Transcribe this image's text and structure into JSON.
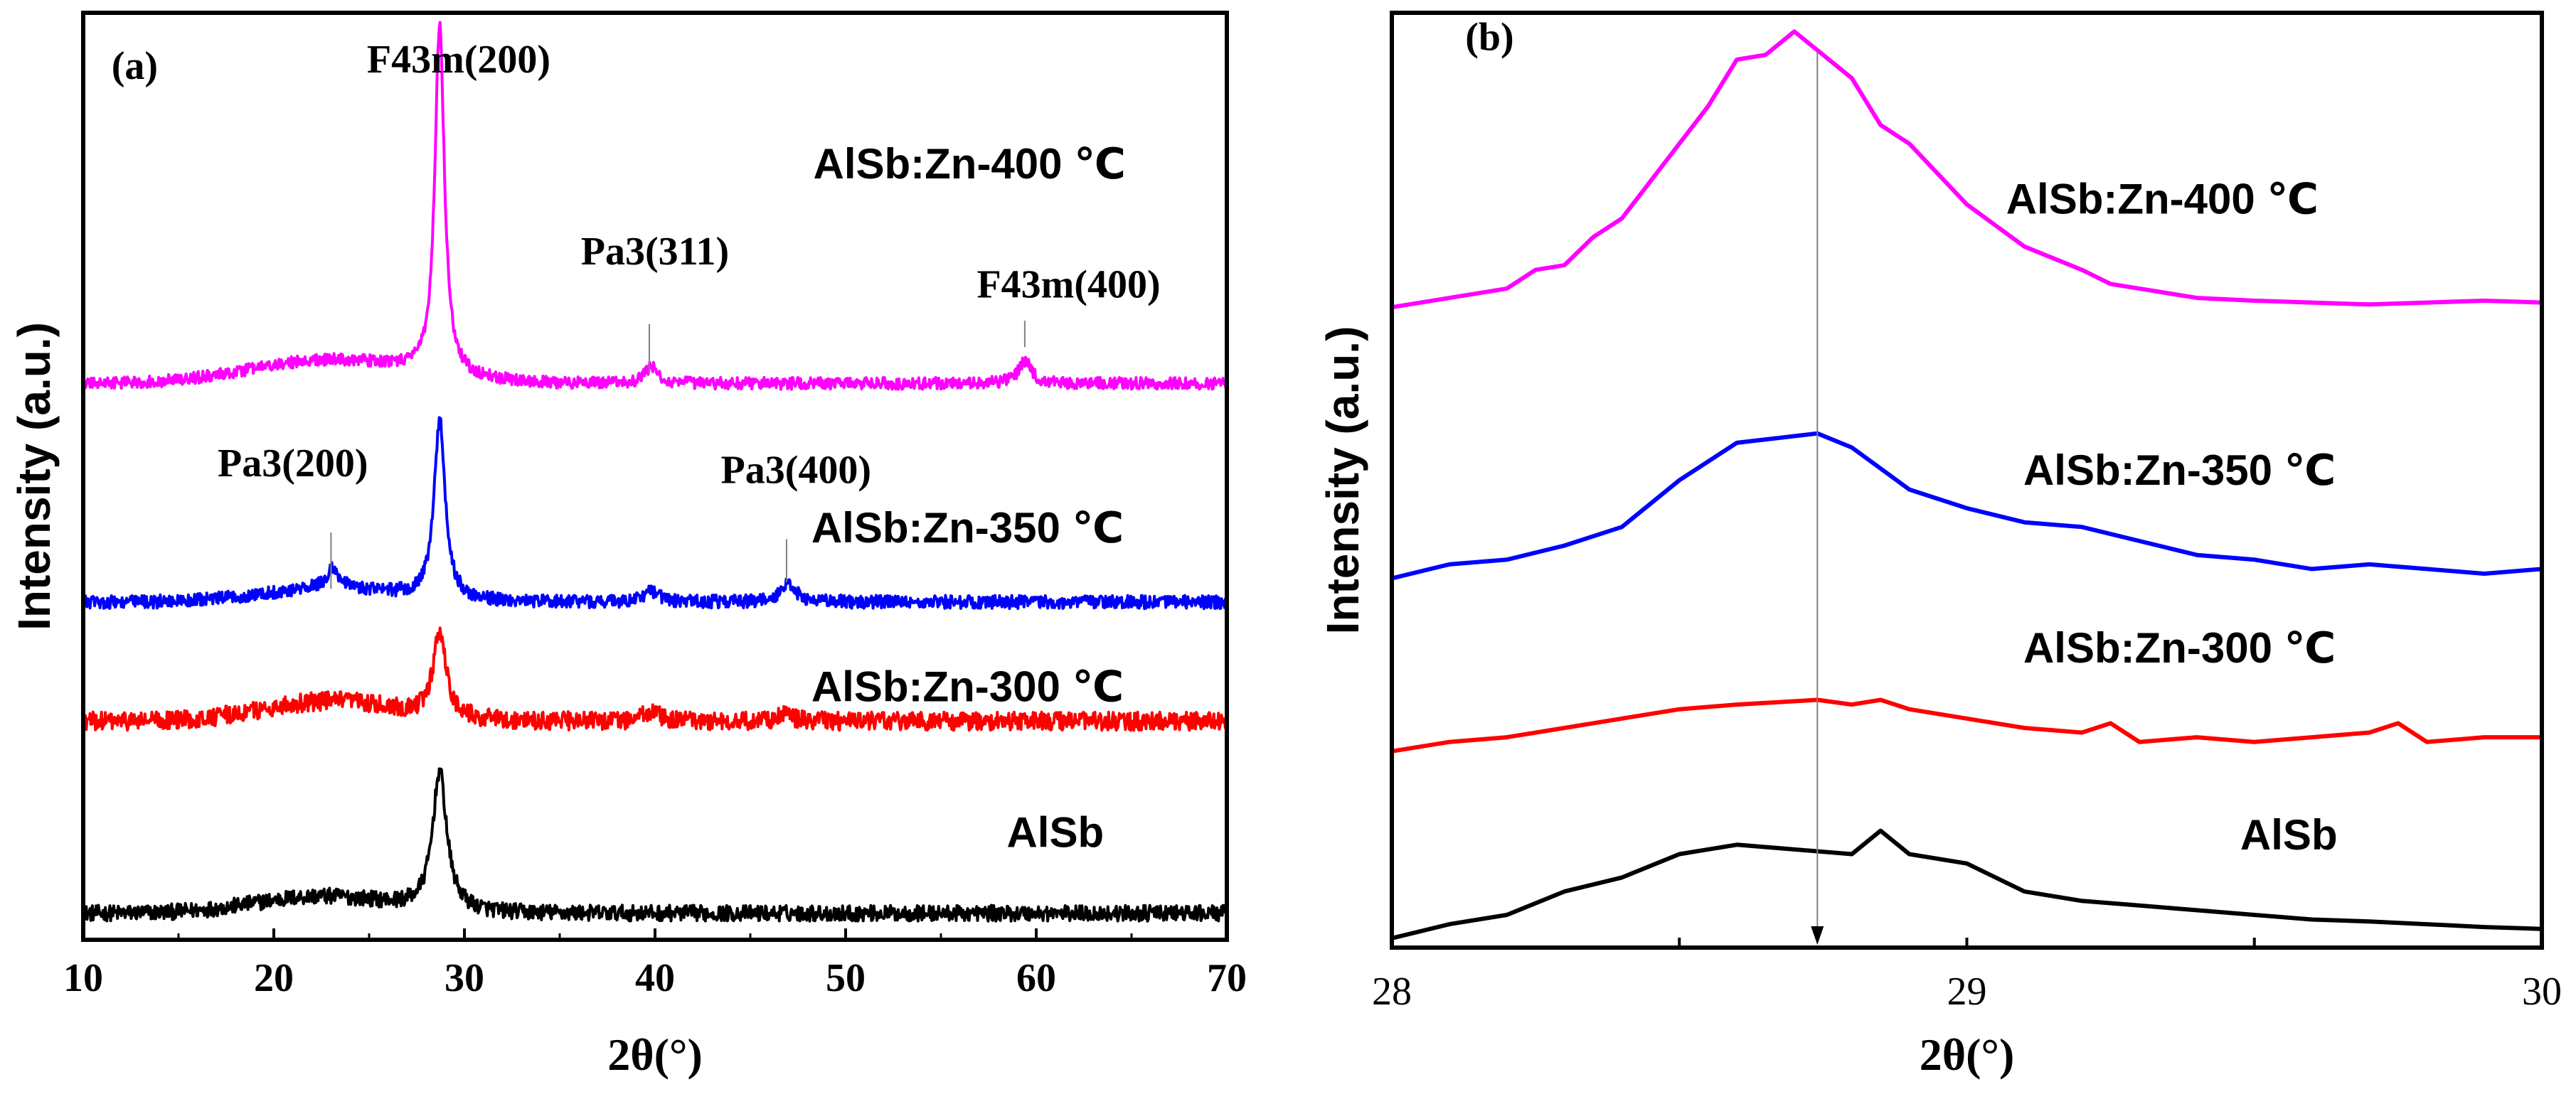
{
  "colors": {
    "AlSb": "#000000",
    "AlSb:Zn-300": "#ff0000",
    "AlSb:Zn-350": "#0000ff",
    "AlSb:Zn-400": "#ff00ff",
    "axis": "#000000",
    "marker": "#808080"
  },
  "chart_data": [
    {
      "panel": "(a)",
      "type": "line",
      "xlabel": "2θ(°)",
      "ylabel": "Intensity (a.u.)",
      "xlim": [
        10,
        70
      ],
      "xticks": [
        10,
        20,
        30,
        40,
        50,
        60,
        70
      ],
      "yticks": "none (offset stacked traces, arbitrary units)",
      "ylim_offset_units": [
        0,
        14
      ],
      "series": [
        {
          "name": "AlSb",
          "label": "AlSb",
          "offset": 0,
          "baseline": 0.4,
          "noise": 0.12,
          "humps": [
            {
              "x": 22.5,
              "w": 5,
              "h": 0.25
            }
          ],
          "peaks": [
            {
              "x": 28.7,
              "h": 2.1,
              "w": 0.45
            }
          ]
        },
        {
          "name": "AlSb:Zn-300",
          "label": "AlSb:Zn-300 ℃",
          "offset": 2.9,
          "baseline": 0.4,
          "noise": 0.14,
          "humps": [
            {
              "x": 23,
              "w": 5,
              "h": 0.3
            }
          ],
          "peaks": [
            {
              "x": 28.7,
              "h": 1.3,
              "w": 0.4
            },
            {
              "x": 39.8,
              "h": 0.15,
              "w": 0.5
            },
            {
              "x": 46.8,
              "h": 0.1,
              "w": 0.5
            }
          ]
        },
        {
          "name": "AlSb:Zn-350",
          "label": "AlSb:Zn-350 ℃",
          "offset": 4.7,
          "baseline": 0.4,
          "noise": 0.1,
          "humps": [
            {
              "x": 23,
              "w": 5,
              "h": 0.2
            }
          ],
          "peaks": [
            {
              "x": 23.1,
              "h": 0.3,
              "w": 0.4
            },
            {
              "x": 28.7,
              "h": 2.7,
              "w": 0.35
            },
            {
              "x": 39.8,
              "h": 0.15,
              "w": 0.5
            },
            {
              "x": 47.0,
              "h": 0.3,
              "w": 0.45
            }
          ]
        },
        {
          "name": "AlSb:Zn-400",
          "label": "AlSb:Zn-400 ℃",
          "offset": 8.0,
          "baseline": 0.4,
          "noise": 0.09,
          "humps": [
            {
              "x": 23,
              "w": 6,
              "h": 0.35
            }
          ],
          "peaks": [
            {
              "x": 28.7,
              "h": 5.3,
              "w": 0.3
            },
            {
              "x": 39.8,
              "h": 0.25,
              "w": 0.4
            },
            {
              "x": 59.4,
              "h": 0.35,
              "w": 0.4
            }
          ]
        }
      ],
      "annotations": [
        {
          "text": "(a)",
          "x": 12.7,
          "y": 13.0
        },
        {
          "text": "F43m(200)",
          "x": 29.7,
          "y": 13.1
        },
        {
          "text": "Pa3(311)",
          "x": 40.0,
          "y": 10.2
        },
        {
          "text": "F43m(400)",
          "x": 61.7,
          "y": 9.7
        },
        {
          "text": "Pa3(200)",
          "x": 21.0,
          "y": 7.0
        },
        {
          "text": "Pa3(400)",
          "x": 47.4,
          "y": 6.9
        },
        {
          "text": "AlSb:Zn-400 ℃",
          "x": 56.5,
          "y": 11.5
        },
        {
          "text": "AlSb:Zn-350 ℃",
          "x": 56.4,
          "y": 6.0
        },
        {
          "text": "AlSb:Zn-300 ℃",
          "x": 56.4,
          "y": 3.6
        },
        {
          "text": "AlSb",
          "x": 61.0,
          "y": 1.4
        }
      ],
      "marker_lines": [
        {
          "x": 39.7,
          "y_from": 8.55,
          "y_to": 9.3
        },
        {
          "x": 59.4,
          "y_from": 8.95,
          "y_to": 9.35
        },
        {
          "x": 23.0,
          "y_from": 5.3,
          "y_to": 6.15
        },
        {
          "x": 46.9,
          "y_from": 5.4,
          "y_to": 6.05
        }
      ]
    },
    {
      "panel": "(b)",
      "type": "line",
      "xlabel": "2θ(°)",
      "ylabel": "Intensity (a.u.)",
      "xlim": [
        28,
        30
      ],
      "xticks": [
        28,
        29,
        30
      ],
      "minor_xticks": [
        28.5,
        29.5
      ],
      "ylim_offset_units": [
        0,
        10
      ],
      "reference_line_x": 28.74,
      "series": [
        {
          "name": "AlSb",
          "label": "AlSb",
          "x": [
            28.0,
            28.1,
            28.2,
            28.3,
            28.4,
            28.5,
            28.6,
            28.7,
            28.8,
            28.85,
            28.9,
            29.0,
            29.1,
            29.2,
            29.3,
            29.4,
            29.5,
            29.6,
            29.7,
            29.8,
            29.9,
            30.0
          ],
          "y": [
            0.1,
            0.25,
            0.35,
            0.6,
            0.75,
            1.0,
            1.1,
            1.05,
            1.0,
            1.25,
            1.0,
            0.9,
            0.6,
            0.5,
            0.45,
            0.4,
            0.35,
            0.3,
            0.28,
            0.25,
            0.22,
            0.2
          ]
        },
        {
          "name": "AlSb:Zn-300",
          "label": "AlSb:Zn-300 ℃",
          "x": [
            28.0,
            28.1,
            28.2,
            28.3,
            28.4,
            28.5,
            28.6,
            28.74,
            28.8,
            28.85,
            28.9,
            29.0,
            29.1,
            29.2,
            29.25,
            29.3,
            29.4,
            29.5,
            29.6,
            29.7,
            29.75,
            29.8,
            29.9,
            30.0
          ],
          "y": [
            2.1,
            2.2,
            2.25,
            2.35,
            2.45,
            2.55,
            2.6,
            2.65,
            2.6,
            2.65,
            2.55,
            2.45,
            2.35,
            2.3,
            2.4,
            2.2,
            2.25,
            2.2,
            2.25,
            2.3,
            2.4,
            2.2,
            2.25,
            2.25
          ]
        },
        {
          "name": "AlSb:Zn-350",
          "label": "AlSb:Zn-350 ℃",
          "x": [
            28.0,
            28.1,
            28.2,
            28.3,
            28.4,
            28.5,
            28.6,
            28.74,
            28.8,
            28.9,
            29.0,
            29.1,
            29.2,
            29.3,
            29.4,
            29.5,
            29.6,
            29.7,
            29.8,
            29.9,
            30.0
          ],
          "y": [
            3.95,
            4.1,
            4.15,
            4.3,
            4.5,
            5.0,
            5.4,
            5.5,
            5.35,
            4.9,
            4.7,
            4.55,
            4.5,
            4.35,
            4.2,
            4.15,
            4.05,
            4.1,
            4.05,
            4.0,
            4.05
          ]
        },
        {
          "name": "AlSb:Zn-400",
          "label": "AlSb:Zn-400 ℃",
          "x": [
            28.0,
            28.1,
            28.2,
            28.25,
            28.3,
            28.35,
            28.4,
            28.5,
            28.55,
            28.6,
            28.65,
            28.7,
            28.8,
            28.85,
            28.9,
            29.0,
            29.1,
            29.2,
            29.25,
            29.3,
            29.35,
            29.4,
            29.5,
            29.6,
            29.7,
            29.8,
            29.9,
            30.0
          ],
          "y": [
            6.85,
            6.95,
            7.05,
            7.25,
            7.3,
            7.6,
            7.8,
            8.6,
            9.0,
            9.5,
            9.55,
            9.8,
            9.3,
            8.8,
            8.6,
            7.95,
            7.5,
            7.25,
            7.1,
            7.05,
            7.0,
            6.95,
            6.92,
            6.9,
            6.88,
            6.9,
            6.92,
            6.9
          ]
        }
      ],
      "annotations": [
        {
          "text": "(b)",
          "x": 28.17,
          "y": 9.6
        },
        {
          "text": "AlSb:Zn-400 ℃",
          "x": 29.34,
          "y": 7.85
        },
        {
          "text": "AlSb:Zn-350 ℃",
          "x": 29.37,
          "y": 4.95
        },
        {
          "text": "AlSb:Zn-300 ℃",
          "x": 29.37,
          "y": 3.05
        },
        {
          "text": "AlSb",
          "x": 29.56,
          "y": 1.05
        }
      ]
    }
  ]
}
